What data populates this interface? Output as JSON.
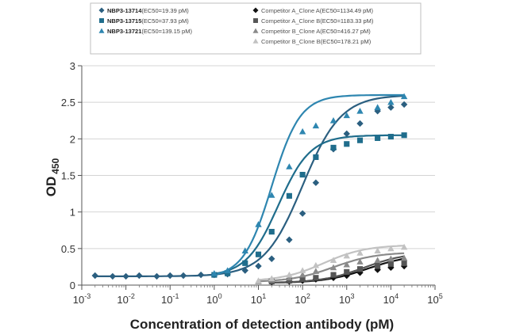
{
  "chart_data": {
    "type": "scatter",
    "title": "",
    "xlabel": "Concentration of detection antibody (pM)",
    "ylabel": "OD",
    "ylabel_subscript": "450",
    "x_scale": "log",
    "xlim": [
      0.001,
      100000
    ],
    "ylim": [
      0,
      3
    ],
    "x_ticks": [
      {
        "value": 0.001,
        "base": "10",
        "exp": "-3"
      },
      {
        "value": 0.01,
        "base": "10",
        "exp": "-2"
      },
      {
        "value": 0.1,
        "base": "10",
        "exp": "-1"
      },
      {
        "value": 1,
        "base": "10",
        "exp": "0"
      },
      {
        "value": 10,
        "base": "10",
        "exp": "1"
      },
      {
        "value": 100,
        "base": "10",
        "exp": "2"
      },
      {
        "value": 1000,
        "base": "10",
        "exp": "3"
      },
      {
        "value": 10000,
        "base": "10",
        "exp": "4"
      },
      {
        "value": 100000,
        "base": "10",
        "exp": "5"
      }
    ],
    "y_ticks": [
      {
        "value": 0,
        "label": "0"
      },
      {
        "value": 0.5,
        "label": "0.5"
      },
      {
        "value": 1,
        "label": "1"
      },
      {
        "value": 1.5,
        "label": "1.5"
      },
      {
        "value": 2,
        "label": "2"
      },
      {
        "value": 2.5,
        "label": "2.5"
      },
      {
        "value": 3,
        "label": "3"
      }
    ],
    "grid": "horizontal",
    "legend_position": "top",
    "series": [
      {
        "name": "NBP3-13714",
        "ec50": "(EC50=19.39 pM)",
        "color": "#2b5f80",
        "marker": "diamond",
        "fit": {
          "bottom": 0.12,
          "top": 2.6,
          "ec50": 100,
          "hill": 1.0
        },
        "x": [
          0.002,
          0.005,
          0.01,
          0.02,
          0.05,
          0.1,
          0.2,
          0.5,
          1,
          2,
          5,
          10,
          20,
          50,
          100,
          200,
          500,
          1000,
          2000,
          5000,
          10000,
          20000
        ],
        "y": [
          0.13,
          0.12,
          0.12,
          0.13,
          0.12,
          0.13,
          0.13,
          0.14,
          0.14,
          0.15,
          0.2,
          0.26,
          0.36,
          0.62,
          0.98,
          1.4,
          1.86,
          2.07,
          2.21,
          2.38,
          2.43,
          2.47
        ]
      },
      {
        "name": "NBP3-13715",
        "ec50": "(EC50=37.93 pM)",
        "color": "#1f6d8c",
        "marker": "square",
        "fit": {
          "bottom": 0.12,
          "top": 2.05,
          "ec50": 28,
          "hill": 1.2
        },
        "x": [
          1,
          2,
          5,
          10,
          20,
          50,
          100,
          200,
          500,
          1000,
          2000,
          5000,
          10000,
          20000
        ],
        "y": [
          0.14,
          0.16,
          0.3,
          0.42,
          0.73,
          1.22,
          1.51,
          1.75,
          1.88,
          1.93,
          1.98,
          2.01,
          2.03,
          2.05
        ]
      },
      {
        "name": "NBP3-13721",
        "ec50": "(EC50=139.15 pM)",
        "color": "#2e86b0",
        "marker": "triangle",
        "fit": {
          "bottom": 0.1,
          "top": 2.6,
          "ec50": 20,
          "hill": 1.35
        },
        "x": [
          1,
          2,
          5,
          10,
          20,
          50,
          100,
          200,
          500,
          1000,
          2000,
          5000,
          10000,
          20000
        ],
        "y": [
          0.16,
          0.2,
          0.47,
          0.83,
          1.23,
          1.62,
          2.1,
          2.18,
          2.25,
          2.32,
          2.38,
          2.43,
          2.5,
          2.58
        ]
      },
      {
        "name": "Competitor A_Clone A",
        "ec50": "(EC50=1134.49 pM)",
        "color": "#111111",
        "marker": "diamond",
        "fit": {
          "bottom": 0.03,
          "top": 0.42,
          "ec50": 3000,
          "hill": 0.9
        },
        "x": [
          20,
          50,
          100,
          200,
          500,
          1000,
          2000,
          5000,
          10000,
          20000
        ],
        "y": [
          0.04,
          0.05,
          0.06,
          0.08,
          0.1,
          0.13,
          0.17,
          0.21,
          0.24,
          0.26
        ]
      },
      {
        "name": "Competitor A_Clone B",
        "ec50": "(EC50=1183.33 pM)",
        "color": "#555555",
        "marker": "square",
        "fit": {
          "bottom": 0.03,
          "top": 0.45,
          "ec50": 2500,
          "hill": 0.9
        },
        "x": [
          20,
          50,
          100,
          200,
          500,
          1000,
          2000,
          5000,
          10000,
          20000
        ],
        "y": [
          0.05,
          0.06,
          0.08,
          0.1,
          0.14,
          0.18,
          0.22,
          0.26,
          0.29,
          0.3
        ]
      },
      {
        "name": "Competitor B_Clone A",
        "ec50": "(EC50=416.27 pM)",
        "color": "#8a8a8a",
        "marker": "triangle",
        "fit": {
          "bottom": 0.04,
          "top": 0.45,
          "ec50": 500,
          "hill": 0.9
        },
        "x": [
          10,
          20,
          50,
          100,
          200,
          500,
          1000,
          2000,
          5000,
          10000,
          20000
        ],
        "y": [
          0.05,
          0.07,
          0.1,
          0.14,
          0.19,
          0.24,
          0.28,
          0.32,
          0.34,
          0.36,
          0.37
        ]
      },
      {
        "name": "Competitor B_Clone B",
        "ec50": "(EC50=178.21 pM)",
        "color": "#c2c2c2",
        "marker": "triangle",
        "fit": {
          "bottom": 0.05,
          "top": 0.55,
          "ec50": 300,
          "hill": 0.9
        },
        "x": [
          10,
          20,
          50,
          100,
          200,
          500,
          1000,
          2000,
          5000,
          10000,
          20000
        ],
        "y": [
          0.06,
          0.09,
          0.14,
          0.2,
          0.27,
          0.34,
          0.4,
          0.44,
          0.47,
          0.5,
          0.52
        ]
      }
    ]
  }
}
